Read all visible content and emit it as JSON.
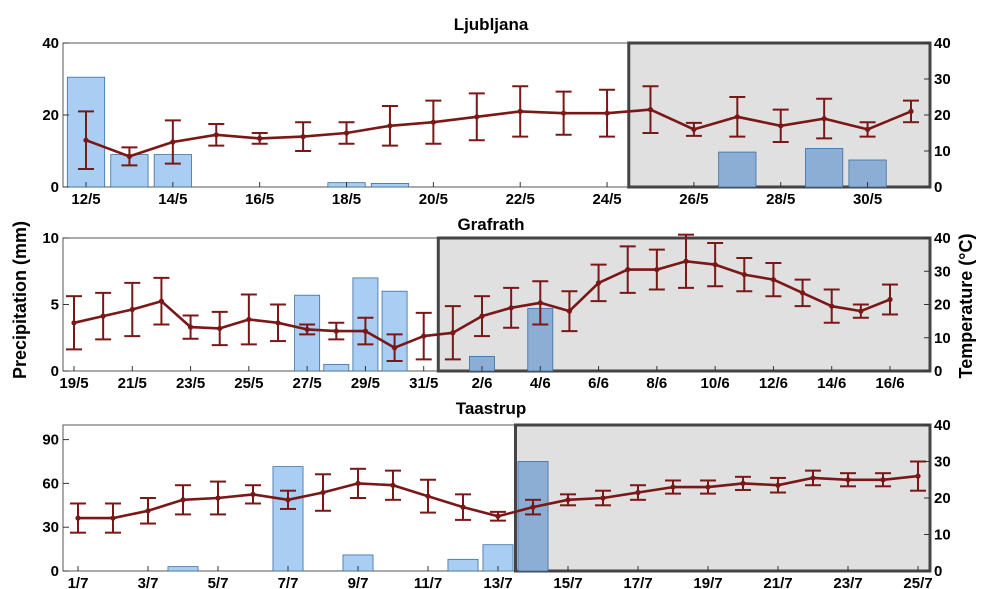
{
  "axes": {
    "left_label": "Precipitation (mm)",
    "right_label": "Temperature (°C)"
  },
  "colors": {
    "bar_white_bg": "#a9cdf3",
    "bar_shaded_bg": "#8caed4",
    "bar_edge": "#3a6ea0",
    "line": "#7a1717",
    "shade": "#e0e0e0",
    "shade_border": "#444444"
  },
  "chart_data": [
    {
      "type": "bar+line",
      "title": "Ljubljana",
      "x": [
        "12/5",
        "13/5",
        "14/5",
        "15/5",
        "16/5",
        "17/5",
        "18/5",
        "19/5",
        "20/5",
        "21/5",
        "22/5",
        "23/5",
        "24/5",
        "25/5",
        "26/5",
        "27/5",
        "28/5",
        "29/5",
        "30/5",
        "31/5"
      ],
      "x_tick_labels": [
        "12/5",
        "14/5",
        "16/5",
        "18/5",
        "20/5",
        "22/5",
        "24/5",
        "26/5",
        "28/5",
        "30/5"
      ],
      "precipitation": [
        30.5,
        9,
        9,
        0,
        0,
        0,
        1.2,
        1,
        0,
        0,
        0,
        0,
        0,
        0,
        0,
        9.7,
        0,
        10.7,
        7.5,
        0
      ],
      "temperature": [
        13,
        8.5,
        12.5,
        14.5,
        13.5,
        14,
        15,
        17,
        18,
        19.5,
        21,
        20.5,
        20.5,
        21.5,
        16,
        19.5,
        17,
        19,
        16,
        21
      ],
      "temperature_error": [
        8,
        2.5,
        6,
        3,
        1.5,
        4,
        3,
        5.5,
        6,
        6.5,
        7,
        6,
        6.5,
        6.5,
        1.8,
        5.5,
        4.5,
        5.5,
        2,
        3
      ],
      "precip_ylim": [
        0,
        40
      ],
      "precip_yticks": [
        0,
        20,
        40
      ],
      "temp_ylim": [
        0,
        40
      ],
      "temp_yticks": [
        0,
        10,
        20,
        30,
        40
      ],
      "shaded_from": "25/5"
    },
    {
      "type": "bar+line",
      "title": "Grafrath",
      "x": [
        "19/5",
        "20/5",
        "21/5",
        "22/5",
        "23/5",
        "24/5",
        "25/5",
        "26/5",
        "27/5",
        "28/5",
        "29/5",
        "30/5",
        "31/5",
        "1/6",
        "2/6",
        "3/6",
        "4/6",
        "5/6",
        "6/6",
        "7/6",
        "8/6",
        "9/6",
        "10/6",
        "11/6",
        "12/6",
        "13/6",
        "14/6",
        "15/6",
        "16/6"
      ],
      "x_tick_labels": [
        "19/5",
        "21/5",
        "23/5",
        "25/5",
        "27/5",
        "29/5",
        "31/5",
        "2/6",
        "4/6",
        "6/6",
        "8/6",
        "10/6",
        "12/6",
        "14/6",
        "16/6"
      ],
      "precipitation": [
        0,
        0,
        0,
        0,
        0,
        0,
        0,
        0,
        5.7,
        0.5,
        7,
        6,
        0,
        0,
        1.1,
        0,
        4.7,
        0,
        0,
        0,
        0,
        0,
        0,
        0,
        0,
        0,
        0,
        0,
        0
      ],
      "temperature": [
        14.5,
        16.5,
        18.5,
        21,
        13.2,
        12.8,
        15.5,
        14.5,
        12.5,
        12,
        12,
        7,
        10.5,
        11.5,
        16.5,
        19,
        20.5,
        18,
        26.5,
        30.5,
        30.5,
        33,
        32,
        29,
        27.5,
        23.5,
        19.5,
        18,
        21.5
      ],
      "temperature_error": [
        8,
        7,
        8,
        7,
        3.5,
        5,
        7.5,
        5.5,
        1.5,
        2.5,
        4,
        4,
        7,
        8,
        6,
        6,
        6.5,
        6,
        5.5,
        7,
        6,
        8,
        6.5,
        5,
        5,
        4,
        5,
        2,
        4.5
      ],
      "precip_ylim": [
        0,
        10
      ],
      "precip_yticks": [
        0,
        5,
        10
      ],
      "temp_ylim": [
        0,
        40
      ],
      "temp_yticks": [
        0,
        10,
        20,
        30,
        40
      ],
      "shaded_from": "1/6"
    },
    {
      "type": "bar+line",
      "title": "Taastrup",
      "x": [
        "1/7",
        "2/7",
        "3/7",
        "4/7",
        "5/7",
        "6/7",
        "7/7",
        "8/7",
        "9/7",
        "10/7",
        "11/7",
        "12/7",
        "13/7",
        "14/7",
        "15/7",
        "16/7",
        "17/7",
        "18/7",
        "19/7",
        "20/7",
        "21/7",
        "22/7",
        "23/7",
        "24/7",
        "25/7"
      ],
      "x_tick_labels": [
        "1/7",
        "3/7",
        "5/7",
        "7/7",
        "9/7",
        "11/7",
        "13/7",
        "15/7",
        "17/7",
        "19/7",
        "21/7",
        "23/7",
        "25/7"
      ],
      "precipitation": [
        0,
        0,
        0,
        3,
        0,
        0,
        71.5,
        0,
        11,
        0,
        0,
        8,
        18,
        75,
        0,
        0,
        0,
        0,
        0,
        0,
        0,
        0,
        0,
        0,
        0
      ],
      "temperature": [
        14.5,
        14.5,
        16.5,
        19.5,
        20,
        21,
        19.5,
        21.5,
        24,
        23.5,
        20.5,
        17.5,
        15,
        17.5,
        19.5,
        20,
        21.5,
        23,
        23,
        24,
        23.5,
        25.5,
        25,
        25,
        26
      ],
      "temperature_error": [
        4,
        4,
        3.5,
        4,
        4.5,
        2.5,
        2.5,
        5,
        4,
        4,
        4.5,
        3.5,
        1.2,
        2,
        1.5,
        2,
        2,
        1.8,
        1.8,
        1.8,
        2,
        2,
        1.8,
        1.8,
        4
      ],
      "precip_ylim": [
        0,
        100
      ],
      "precip_yticks": [
        0,
        30,
        60,
        90
      ],
      "temp_ylim": [
        0,
        40
      ],
      "temp_yticks": [
        0,
        10,
        20,
        30,
        40
      ],
      "shaded_from": "14/7"
    }
  ]
}
